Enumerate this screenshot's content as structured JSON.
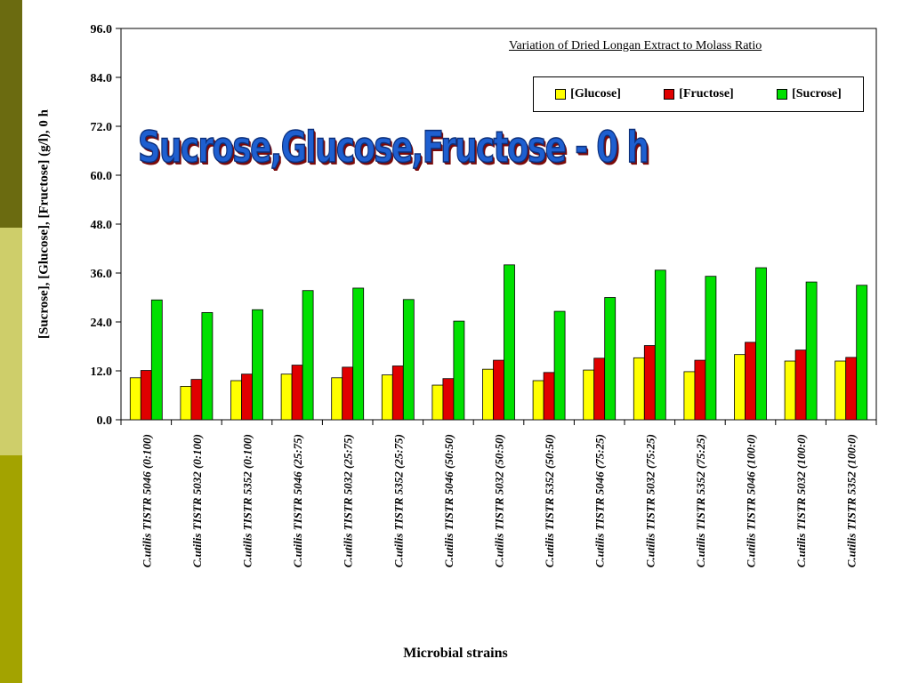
{
  "sidebar": {
    "colors": [
      "#6b6b10",
      "#cece6a",
      "#a3a300"
    ]
  },
  "overlay_title": "Sucrose,Glucose,Fructose - 0 h",
  "chart_data": {
    "type": "bar",
    "subtitle": "Variation of Dried Longan Extract to Molass Ratio",
    "xlabel": "Microbial strains",
    "ylabel": "[Sucrose], [Glucose], [Fructose] (g/l), 0 h",
    "ylim": [
      0,
      96
    ],
    "yticks": [
      "0.0",
      "12.0",
      "24.0",
      "36.0",
      "48.0",
      "60.0",
      "72.0",
      "84.0",
      "96.0"
    ],
    "legend_position": "top-right",
    "grid": false,
    "categories": [
      "C.utilis TISTR 5046 (0:100)",
      "C.utilis TISTR 5032 (0:100)",
      "C.utilis TISTR 5352 (0:100)",
      "C.utilis TISTR 5046 (25:75)",
      "C.utilis TISTR 5032 (25:75)",
      "C.utilis TISTR 5352 (25:75)",
      "C.utilis TISTR 5046 (50:50)",
      "C.utilis TISTR 5032 (50:50)",
      "C.utilis TISTR 5352 (50:50)",
      "C.utilis TISTR 5046 (75:25)",
      "C.utilis TISTR 5032 (75:25)",
      "C.utilis TISTR 5352 (75:25)",
      "C.utilis TISTR 5046 (100:0)",
      "C.utilis TISTR 5032 (100:0)",
      "C.utilis TISTR 5352 (100:0)"
    ],
    "series": [
      {
        "name": "[Glucose]",
        "color": "#ffff00",
        "values": [
          10.3,
          8.2,
          9.6,
          11.2,
          10.3,
          11.0,
          8.5,
          12.4,
          9.6,
          12.2,
          15.2,
          11.8,
          16.0,
          14.4,
          14.4
        ]
      },
      {
        "name": "[Fructose]",
        "color": "#e00000",
        "values": [
          12.1,
          9.9,
          11.2,
          13.4,
          12.9,
          13.2,
          10.1,
          14.6,
          11.6,
          15.1,
          18.2,
          14.6,
          19.0,
          17.1,
          15.3
        ]
      },
      {
        "name": "[Sucrose]",
        "color": "#00e000",
        "values": [
          29.4,
          26.3,
          27.0,
          31.7,
          32.3,
          29.5,
          24.2,
          38.0,
          26.6,
          30.0,
          36.7,
          35.2,
          37.3,
          33.8,
          33.0
        ]
      }
    ]
  }
}
